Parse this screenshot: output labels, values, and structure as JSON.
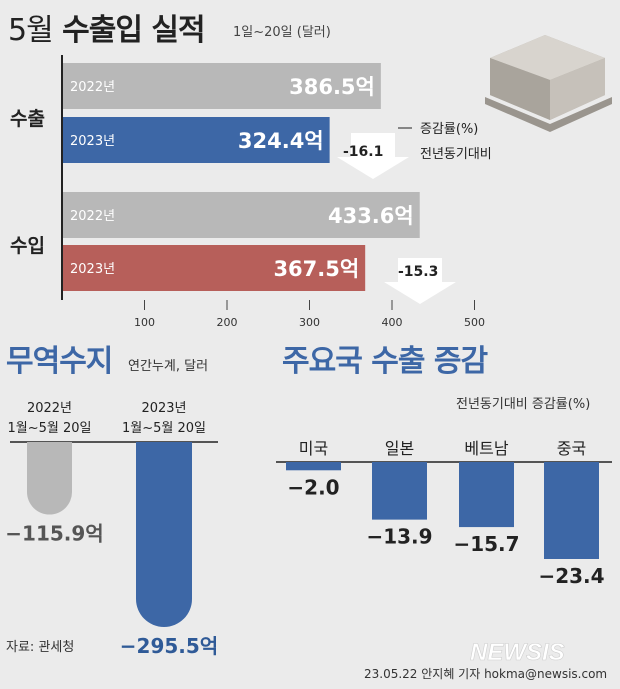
{
  "header": {
    "title_month": "5월",
    "title_rest": "수출입 실적",
    "subtitle": "1일~20일 (달러)"
  },
  "chart_data": [
    {
      "type": "bar",
      "orientation": "horizontal",
      "title": "5월 수출입 실적",
      "subtitle": "1일~20일 (달러)",
      "groups": [
        {
          "label": "수출",
          "bars": [
            {
              "year": "2022년",
              "value": 386.5,
              "value_label": "386.5억"
            },
            {
              "year": "2023년",
              "value": 324.4,
              "value_label": "324.4억"
            }
          ],
          "change": "-16.1"
        },
        {
          "label": "수입",
          "bars": [
            {
              "year": "2022년",
              "value": 433.6,
              "value_label": "433.6억"
            },
            {
              "year": "2023년",
              "value": 367.5,
              "value_label": "367.5억"
            }
          ],
          "change": "-15.3"
        }
      ],
      "change_note": [
        "증감률(%)",
        "전년동기대비"
      ],
      "xticks": [
        100,
        200,
        300,
        400,
        500
      ],
      "xlim": [
        0,
        500
      ],
      "colors": {
        "prev": "#b8b8b8",
        "export_2023": "#3d67a6",
        "import_2023": "#b75f5a"
      }
    },
    {
      "type": "bar",
      "title": "무역수지",
      "subtitle": "연간누계, 달러",
      "categories": [
        "2022년\n1월~5월 20일",
        "2023년\n1월~5월 20일"
      ],
      "category_lines": [
        [
          "2022년",
          "1월~5월 20일"
        ],
        [
          "2023년",
          "1월~5월 20일"
        ]
      ],
      "values": [
        -115.9,
        -295.5
      ],
      "value_labels": [
        "−115.9억",
        "−295.5억"
      ],
      "colors": [
        "#b8b8b8",
        "#3d67a6"
      ]
    },
    {
      "type": "bar",
      "title": "주요국 수출 증감",
      "subtitle": "전년동기대비 증감률(%)",
      "categories": [
        "미국",
        "일본",
        "베트남",
        "중국"
      ],
      "values": [
        -2.0,
        -13.9,
        -15.7,
        -23.4
      ],
      "value_labels": [
        "−2.0",
        "−13.9",
        "−15.7",
        "−23.4"
      ],
      "color": "#3d67a6"
    }
  ],
  "footer": {
    "source": "자료: 관세청",
    "credit": "23.05.22 안지혜 기자 hokma@newsis.com",
    "logo": "NEWSIS"
  }
}
